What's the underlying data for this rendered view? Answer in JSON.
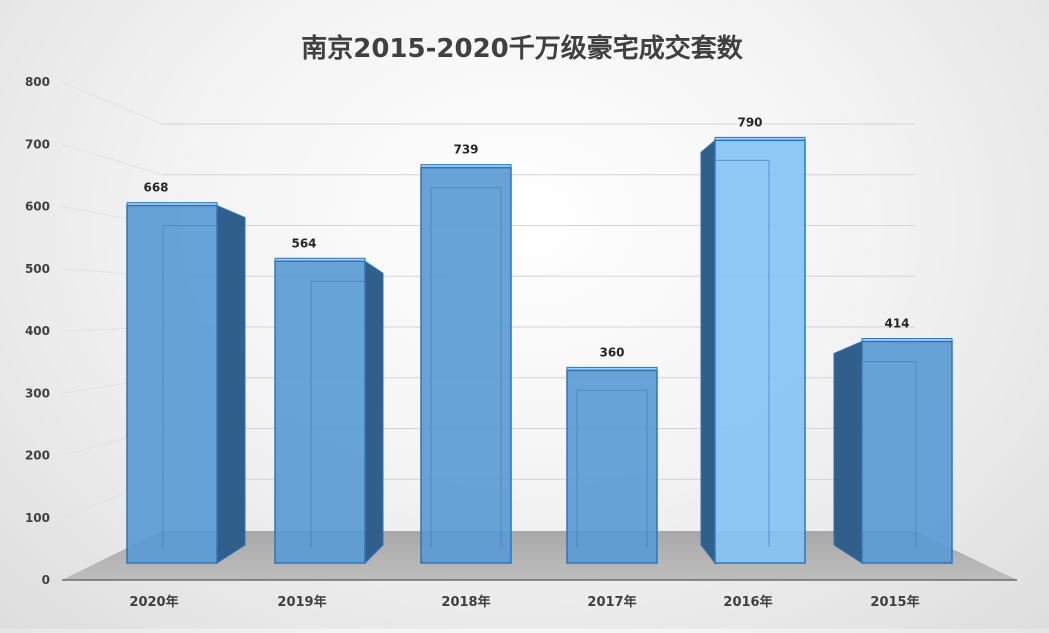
{
  "chart_data": {
    "type": "bar",
    "title": "南京2015-2020千万级豪宅成交套数",
    "categories": [
      "2020年",
      "2019年",
      "2018年",
      "2017年",
      "2016年",
      "2015年"
    ],
    "values": [
      668,
      564,
      739,
      360,
      790,
      414
    ],
    "ylim": [
      0,
      800
    ],
    "yticks": [
      0,
      100,
      200,
      300,
      400,
      500,
      600,
      700,
      800
    ],
    "xlabel": "",
    "ylabel": "",
    "grid": true,
    "legend": "none",
    "style": "3d-perspective",
    "colors": {
      "bar_front": "#5b9bd5",
      "bar_edge": "#2e75b6",
      "bar_side": "#2f5f8a",
      "floor": "#a6a6a6"
    }
  }
}
